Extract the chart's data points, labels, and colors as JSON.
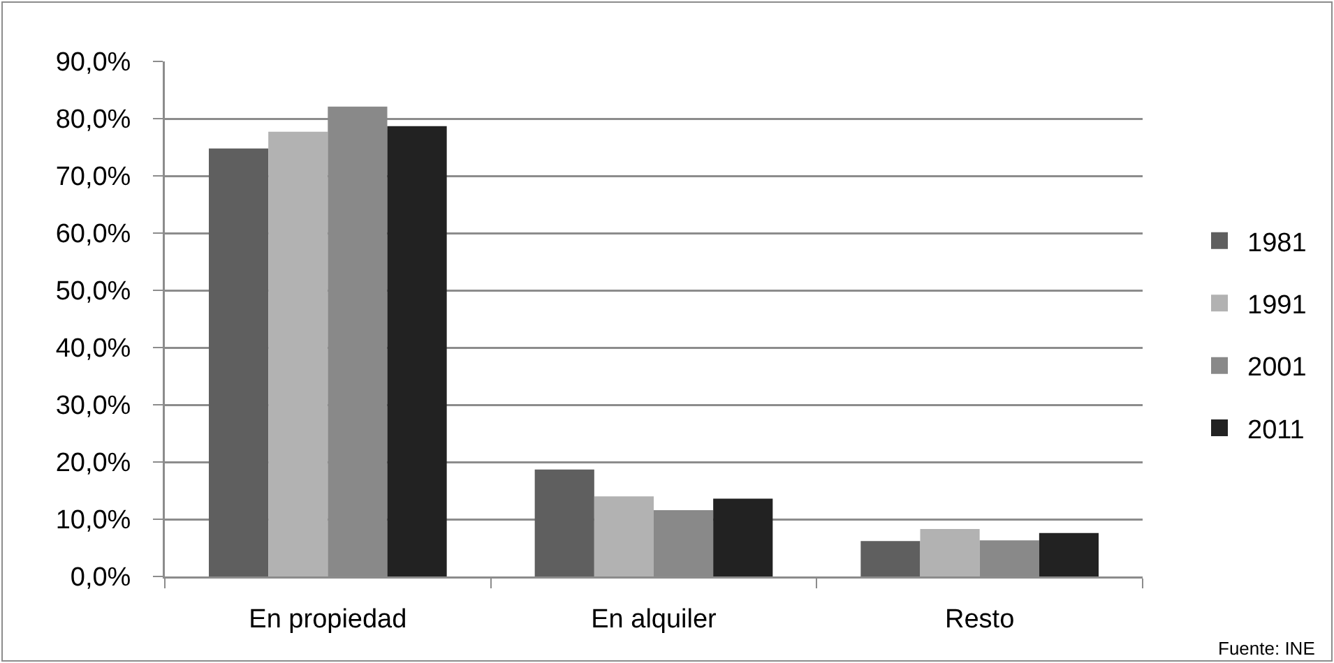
{
  "chart_data": {
    "type": "bar",
    "categories": [
      "En propiedad",
      "En alquiler",
      "Resto"
    ],
    "series": [
      {
        "name": "1981",
        "color": "#5f5f5f",
        "values": [
          74.8,
          18.7,
          6.2
        ]
      },
      {
        "name": "1991",
        "color": "#b2b2b2",
        "values": [
          77.7,
          14.0,
          8.3
        ]
      },
      {
        "name": "2001",
        "color": "#898989",
        "values": [
          82.1,
          11.6,
          6.3
        ]
      },
      {
        "name": "2011",
        "color": "#222222",
        "values": [
          78.7,
          13.6,
          7.6
        ]
      }
    ],
    "ylim": [
      0,
      90
    ],
    "yticks": [
      {
        "value": 0,
        "label": "0,0%"
      },
      {
        "value": 10,
        "label": "10,0%"
      },
      {
        "value": 20,
        "label": "20,0%"
      },
      {
        "value": 30,
        "label": "30,0%"
      },
      {
        "value": 40,
        "label": "40,0%"
      },
      {
        "value": 50,
        "label": "50,0%"
      },
      {
        "value": 60,
        "label": "60,0%"
      },
      {
        "value": 70,
        "label": "70,0%"
      },
      {
        "value": 80,
        "label": "80,0%"
      },
      {
        "value": 90,
        "label": "90,0%"
      }
    ],
    "grid": "y",
    "legend": "right",
    "annotations": [
      "Fuente: INE"
    ]
  }
}
